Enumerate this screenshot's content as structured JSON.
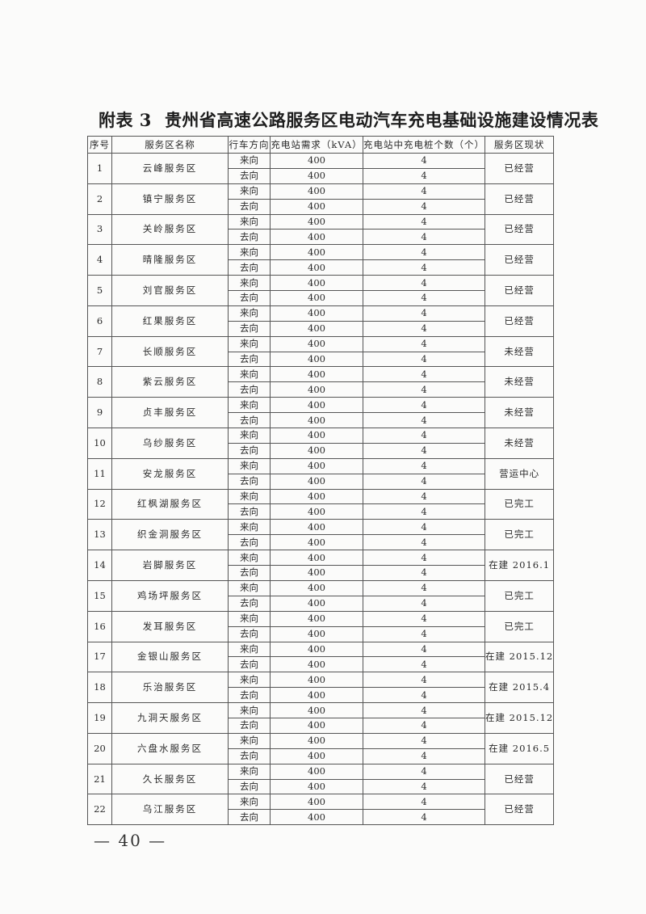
{
  "title": {
    "label": "附表 3",
    "text": "贵州省高速公路服务区电动汽车充电基础设施建设情况表"
  },
  "headers": [
    "序号",
    "服务区名称",
    "行车方向",
    "充电站需求（kVA）",
    "充电站中充电桩个数（个）",
    "服务区现状"
  ],
  "directions": [
    "来向",
    "去向"
  ],
  "rows": [
    {
      "no": "1",
      "name": "云峰服务区",
      "kva": [
        "400",
        "400"
      ],
      "piles": [
        "4",
        "4"
      ],
      "status": "已经营"
    },
    {
      "no": "2",
      "name": "镇宁服务区",
      "kva": [
        "400",
        "400"
      ],
      "piles": [
        "4",
        "4"
      ],
      "status": "已经营"
    },
    {
      "no": "3",
      "name": "关岭服务区",
      "kva": [
        "400",
        "400"
      ],
      "piles": [
        "4",
        "4"
      ],
      "status": "已经营"
    },
    {
      "no": "4",
      "name": "晴隆服务区",
      "kva": [
        "400",
        "400"
      ],
      "piles": [
        "4",
        "4"
      ],
      "status": "已经营"
    },
    {
      "no": "5",
      "name": "刘官服务区",
      "kva": [
        "400",
        "400"
      ],
      "piles": [
        "4",
        "4"
      ],
      "status": "已经营"
    },
    {
      "no": "6",
      "name": "红果服务区",
      "kva": [
        "400",
        "400"
      ],
      "piles": [
        "4",
        "4"
      ],
      "status": "已经营"
    },
    {
      "no": "7",
      "name": "长顺服务区",
      "kva": [
        "400",
        "400"
      ],
      "piles": [
        "4",
        "4"
      ],
      "status": "未经营"
    },
    {
      "no": "8",
      "name": "紫云服务区",
      "kva": [
        "400",
        "400"
      ],
      "piles": [
        "4",
        "4"
      ],
      "status": "未经营"
    },
    {
      "no": "9",
      "name": "贞丰服务区",
      "kva": [
        "400",
        "400"
      ],
      "piles": [
        "4",
        "4"
      ],
      "status": "未经营"
    },
    {
      "no": "10",
      "name": "乌纱服务区",
      "kva": [
        "400",
        "400"
      ],
      "piles": [
        "4",
        "4"
      ],
      "status": "未经营"
    },
    {
      "no": "11",
      "name": "安龙服务区",
      "kva": [
        "400",
        "400"
      ],
      "piles": [
        "4",
        "4"
      ],
      "status": "营运中心"
    },
    {
      "no": "12",
      "name": "红枫湖服务区",
      "kva": [
        "400",
        "400"
      ],
      "piles": [
        "4",
        "4"
      ],
      "status": "已完工"
    },
    {
      "no": "13",
      "name": "织金洞服务区",
      "kva": [
        "400",
        "400"
      ],
      "piles": [
        "4",
        "4"
      ],
      "status": "已完工"
    },
    {
      "no": "14",
      "name": "岩脚服务区",
      "kva": [
        "400",
        "400"
      ],
      "piles": [
        "4",
        "4"
      ],
      "status": "在建 2016.1"
    },
    {
      "no": "15",
      "name": "鸡场坪服务区",
      "kva": [
        "400",
        "400"
      ],
      "piles": [
        "4",
        "4"
      ],
      "status": "已完工"
    },
    {
      "no": "16",
      "name": "发耳服务区",
      "kva": [
        "400",
        "400"
      ],
      "piles": [
        "4",
        "4"
      ],
      "status": "已完工"
    },
    {
      "no": "17",
      "name": "金银山服务区",
      "kva": [
        "400",
        "400"
      ],
      "piles": [
        "4",
        "4"
      ],
      "status": "在建 2015.12"
    },
    {
      "no": "18",
      "name": "乐治服务区",
      "kva": [
        "400",
        "400"
      ],
      "piles": [
        "4",
        "4"
      ],
      "status": "在建 2015.4"
    },
    {
      "no": "19",
      "name": "九洞天服务区",
      "kva": [
        "400",
        "400"
      ],
      "piles": [
        "4",
        "4"
      ],
      "status": "在建 2015.12"
    },
    {
      "no": "20",
      "name": "六盘水服务区",
      "kva": [
        "400",
        "400"
      ],
      "piles": [
        "4",
        "4"
      ],
      "status": "在建 2016.5"
    },
    {
      "no": "21",
      "name": "久长服务区",
      "kva": [
        "400",
        "400"
      ],
      "piles": [
        "4",
        "4"
      ],
      "status": "已经营"
    },
    {
      "no": "22",
      "name": "乌江服务区",
      "kva": [
        "400",
        "400"
      ],
      "piles": [
        "4",
        "4"
      ],
      "status": "已经营"
    }
  ],
  "page_number": "— 40 —"
}
